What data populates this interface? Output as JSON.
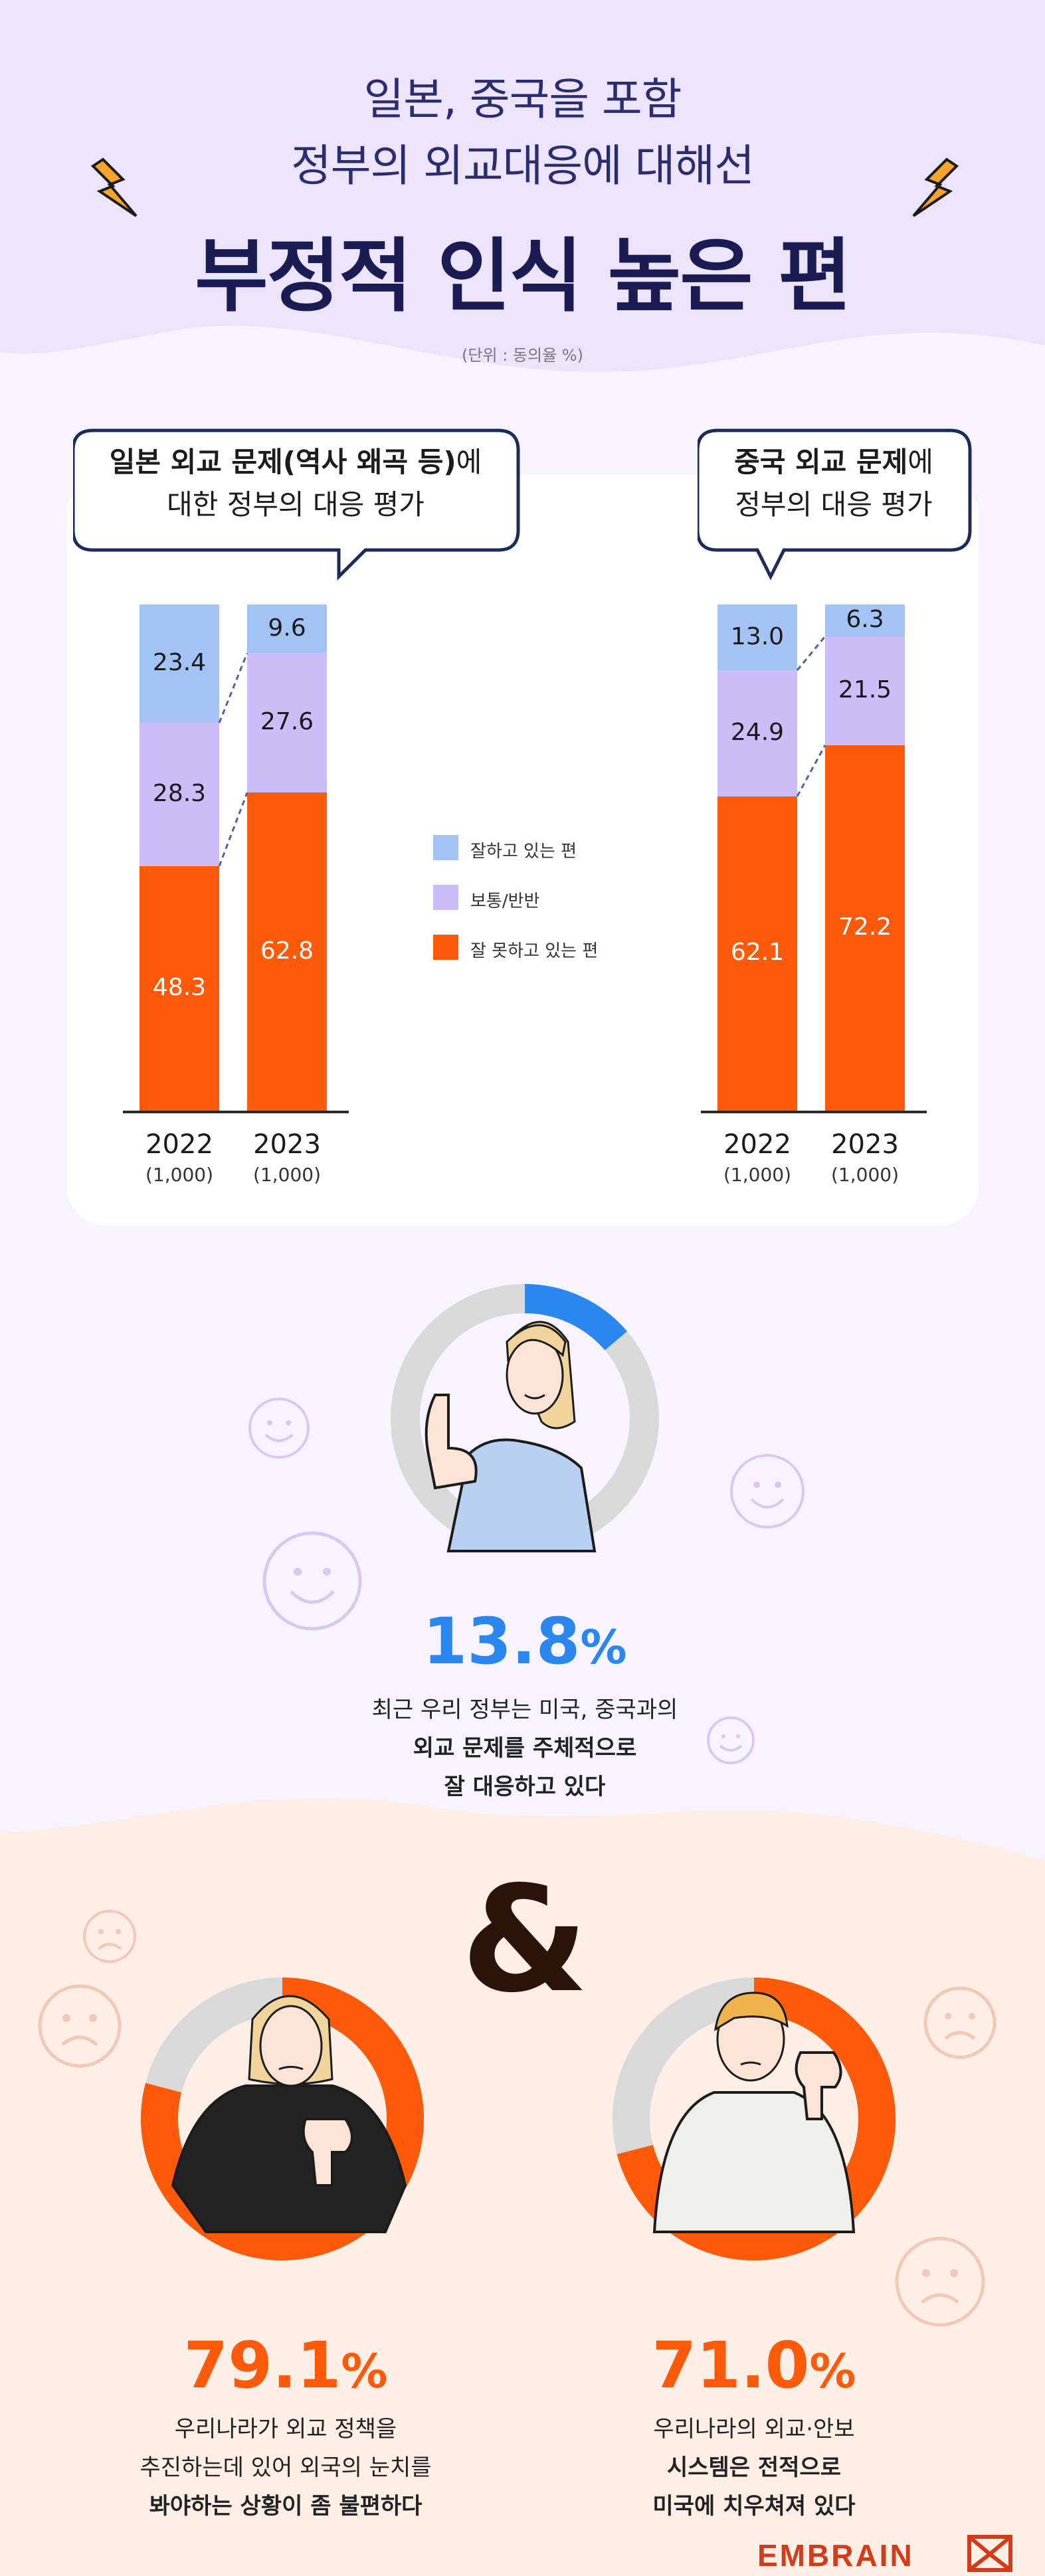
{
  "header": {
    "line1": "일본, 중국을 포함",
    "line2": "정부의 외교대응에 대해선",
    "line3": "부정적 인식 높은 편",
    "unit": "(단위 : 동의율 %)"
  },
  "colors": {
    "positive": "#a4c3f5",
    "neutral": "#cbbdf7",
    "negative": "#ff5a0a",
    "accent_blue": "#2c86f0",
    "header_bg": "#ece4fb",
    "bottom_bg": "#fdeee6"
  },
  "chart_data": [
    {
      "type": "bar",
      "stacked": true,
      "title_bold": "일본 외교 문제(역사 왜곡 등)",
      "title_rest1": "에",
      "title_line2": "대한 정부의 대응 평가",
      "categories": [
        "2022",
        "2023"
      ],
      "sample_sizes": [
        "(1,000)",
        "(1,000)"
      ],
      "series": [
        {
          "name": "잘 못하고 있는 편",
          "values": [
            48.3,
            62.8
          ]
        },
        {
          "name": "보통/반반",
          "values": [
            28.3,
            27.6
          ]
        },
        {
          "name": "잘하고 있는 편",
          "values": [
            23.4,
            9.6
          ]
        }
      ],
      "ylim": [
        0,
        100
      ]
    },
    {
      "type": "bar",
      "stacked": true,
      "title_bold": "중국 외교 문제",
      "title_rest1": "에",
      "title_line2": "정부의 대응 평가",
      "categories": [
        "2022",
        "2023"
      ],
      "sample_sizes": [
        "(1,000)",
        "(1,000)"
      ],
      "series": [
        {
          "name": "잘 못하고 있는 편",
          "values": [
            62.1,
            72.2
          ]
        },
        {
          "name": "보통/반반",
          "values": [
            24.9,
            21.5
          ]
        },
        {
          "name": "잘하고 있는 편",
          "values": [
            13.0,
            6.3
          ]
        }
      ],
      "ylim": [
        0,
        100
      ]
    }
  ],
  "legend": [
    {
      "label": "잘하고 있는 편",
      "color": "#a4c3f5"
    },
    {
      "label": "보통/반반",
      "color": "#cbbdf7"
    },
    {
      "label": "잘 못하고 있는 편",
      "color": "#ff5a0a"
    }
  ],
  "stat_positive": {
    "value": "13.8",
    "unit": "%",
    "fraction": 0.138,
    "desc1": "최근 우리 정부는 미국, 중국과의",
    "desc2": "외교 문제를 주체적으로",
    "desc3": "잘 대응하고 있다"
  },
  "ampersand": "&",
  "stat_neg1": {
    "value": "79.1",
    "unit": "%",
    "fraction": 0.791,
    "desc1": "우리나라가 외교 정책을",
    "desc2": "추진하는데 있어 외국의 눈치를",
    "desc3": "봐야하는 상황이 좀 불편하다"
  },
  "stat_neg2": {
    "value": "71.0",
    "unit": "%",
    "fraction": 0.71,
    "desc1": "우리나라의 외교·안보",
    "desc2": "시스템은 전적으로",
    "desc3": "미국에 치우쳐져 있다"
  },
  "brand": "EMBRAIN"
}
